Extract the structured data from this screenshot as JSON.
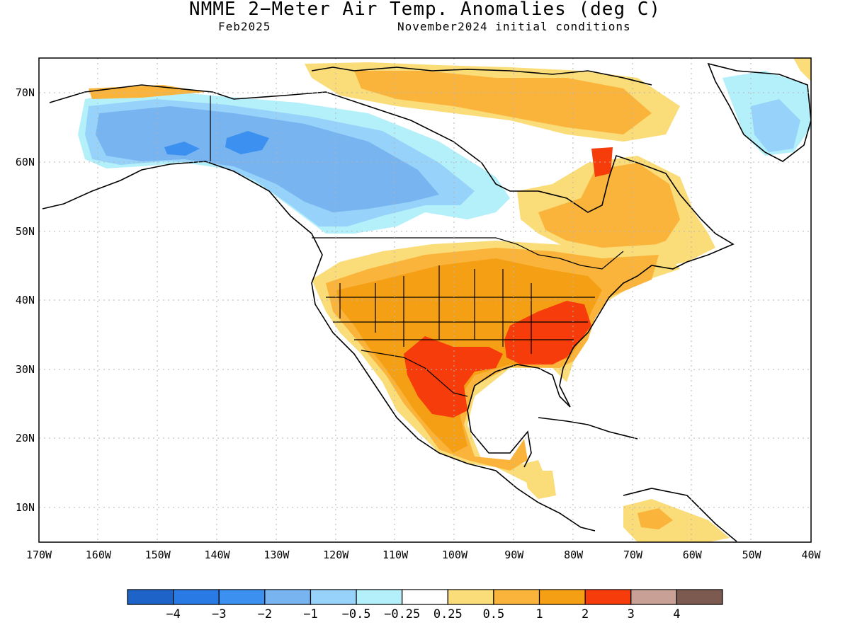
{
  "title": "NMME 2−Meter Air Temp. Anomalies (deg C)",
  "subtitle_left": "Feb2025",
  "subtitle_right": "November2024 initial conditions",
  "lat_ticks": [
    "70N",
    "60N",
    "50N",
    "40N",
    "30N",
    "20N",
    "10N"
  ],
  "lon_ticks": [
    "170W",
    "160W",
    "150W",
    "140W",
    "130W",
    "120W",
    "110W",
    "100W",
    "90W",
    "80W",
    "70W",
    "60W",
    "50W",
    "40W"
  ],
  "colorbar": {
    "colors": [
      "#1e64c8",
      "#2a7ae6",
      "#3c91f0",
      "#78b4f0",
      "#96d2fa",
      "#b4f0fa",
      "#ffffff",
      "#fadc78",
      "#fab43c",
      "#f5a014",
      "#f53c0a",
      "#c8a096",
      "#7d5a50"
    ],
    "labels": [
      "−4",
      "−3",
      "−2",
      "−1",
      "−0.5",
      "−0.25",
      "0.25",
      "0.5",
      "1",
      "2",
      "3",
      "4"
    ]
  },
  "palette": {
    "cold1": "#b4f0fa",
    "cold2": "#96d2fa",
    "cold3": "#78b4f0",
    "cold4": "#3c91f0",
    "warm1": "#fadc78",
    "warm2": "#fab43c",
    "warm3": "#f5a014",
    "warm4": "#f53c0a"
  }
}
